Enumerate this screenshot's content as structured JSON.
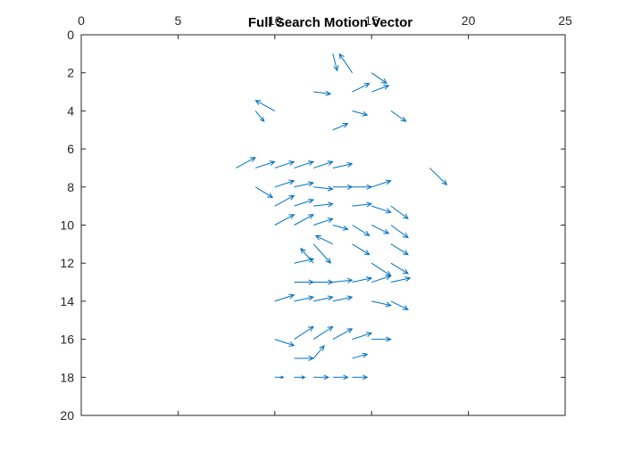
{
  "chart_data": {
    "type": "quiver",
    "title": "Full Search Motion Vector",
    "xlabel": "",
    "ylabel": "",
    "xlim": [
      0,
      25
    ],
    "ylim": [
      0,
      20
    ],
    "y_reversed": true,
    "x_axis_location": "top",
    "grid": false,
    "box": true,
    "x_ticks": [
      0,
      5,
      10,
      15,
      20,
      25
    ],
    "y_ticks": [
      0,
      2,
      4,
      6,
      8,
      10,
      12,
      14,
      16,
      18,
      20
    ],
    "color": "#0072BD",
    "vectors": [
      {
        "x": 13,
        "y": 1,
        "u": 0.2,
        "v": 0.8
      },
      {
        "x": 14,
        "y": 2,
        "u": -0.6,
        "v": -0.9
      },
      {
        "x": 15,
        "y": 2,
        "u": 0.7,
        "v": 0.5
      },
      {
        "x": 12,
        "y": 3,
        "u": 0.8,
        "v": 0.1
      },
      {
        "x": 14,
        "y": 3,
        "u": 0.8,
        "v": -0.4
      },
      {
        "x": 15,
        "y": 3,
        "u": 0.8,
        "v": -0.3
      },
      {
        "x": 10,
        "y": 4,
        "u": -0.9,
        "v": -0.5
      },
      {
        "x": 9,
        "y": 4,
        "u": 0.4,
        "v": 0.5
      },
      {
        "x": 14,
        "y": 4,
        "u": 0.7,
        "v": 0.2
      },
      {
        "x": 16,
        "y": 4,
        "u": 0.7,
        "v": 0.5
      },
      {
        "x": 13,
        "y": 5,
        "u": 0.7,
        "v": -0.3
      },
      {
        "x": 8,
        "y": 7,
        "u": 0.9,
        "v": -0.5
      },
      {
        "x": 9,
        "y": 7,
        "u": 0.9,
        "v": -0.3
      },
      {
        "x": 10,
        "y": 7,
        "u": 0.9,
        "v": -0.3
      },
      {
        "x": 11,
        "y": 7,
        "u": 0.9,
        "v": -0.3
      },
      {
        "x": 12,
        "y": 7,
        "u": 0.9,
        "v": -0.3
      },
      {
        "x": 13,
        "y": 7,
        "u": 0.9,
        "v": -0.2
      },
      {
        "x": 18,
        "y": 7,
        "u": 0.8,
        "v": 0.8
      },
      {
        "x": 9,
        "y": 8,
        "u": 0.8,
        "v": 0.5
      },
      {
        "x": 10,
        "y": 8,
        "u": 0.9,
        "v": -0.3
      },
      {
        "x": 11,
        "y": 8,
        "u": 0.9,
        "v": -0.2
      },
      {
        "x": 12,
        "y": 8,
        "u": 0.9,
        "v": 0.1
      },
      {
        "x": 13,
        "y": 8,
        "u": 0.9,
        "v": 0.0
      },
      {
        "x": 14,
        "y": 8,
        "u": 0.9,
        "v": 0.0
      },
      {
        "x": 15,
        "y": 8,
        "u": 0.9,
        "v": -0.3
      },
      {
        "x": 10,
        "y": 9,
        "u": 0.9,
        "v": -0.5
      },
      {
        "x": 11,
        "y": 9,
        "u": 0.9,
        "v": -0.3
      },
      {
        "x": 12,
        "y": 9,
        "u": 0.9,
        "v": -0.1
      },
      {
        "x": 14,
        "y": 9,
        "u": 0.9,
        "v": -0.1
      },
      {
        "x": 15,
        "y": 9,
        "u": 0.9,
        "v": 0.3
      },
      {
        "x": 16,
        "y": 9,
        "u": 0.8,
        "v": 0.6
      },
      {
        "x": 10,
        "y": 10,
        "u": 0.9,
        "v": -0.5
      },
      {
        "x": 11,
        "y": 10,
        "u": 0.9,
        "v": -0.5
      },
      {
        "x": 12,
        "y": 10,
        "u": 0.9,
        "v": -0.3
      },
      {
        "x": 13,
        "y": 10,
        "u": 0.7,
        "v": 0.2
      },
      {
        "x": 14,
        "y": 10,
        "u": 0.8,
        "v": 0.5
      },
      {
        "x": 15,
        "y": 10,
        "u": 0.8,
        "v": 0.4
      },
      {
        "x": 16,
        "y": 10,
        "u": 0.8,
        "v": 0.6
      },
      {
        "x": 12,
        "y": 11,
        "u": 0.8,
        "v": 0.9
      },
      {
        "x": 13,
        "y": 11,
        "u": -0.8,
        "v": -0.4
      },
      {
        "x": 14,
        "y": 11,
        "u": 0.8,
        "v": 0.5
      },
      {
        "x": 16,
        "y": 11,
        "u": 0.8,
        "v": 0.5
      },
      {
        "x": 11,
        "y": 12,
        "u": 0.9,
        "v": -0.2
      },
      {
        "x": 12,
        "y": 12,
        "u": -0.6,
        "v": -0.7
      },
      {
        "x": 15,
        "y": 12,
        "u": 0.9,
        "v": 0.6
      },
      {
        "x": 16,
        "y": 12,
        "u": 0.8,
        "v": 0.5
      },
      {
        "x": 11,
        "y": 13,
        "u": 0.9,
        "v": 0.0
      },
      {
        "x": 12,
        "y": 13,
        "u": 0.9,
        "v": 0.0
      },
      {
        "x": 13,
        "y": 13,
        "u": 0.9,
        "v": -0.1
      },
      {
        "x": 14,
        "y": 13,
        "u": 0.9,
        "v": -0.2
      },
      {
        "x": 15,
        "y": 13,
        "u": 0.9,
        "v": -0.3
      },
      {
        "x": 16,
        "y": 13,
        "u": 0.9,
        "v": -0.2
      },
      {
        "x": 10,
        "y": 14,
        "u": 0.9,
        "v": -0.3
      },
      {
        "x": 11,
        "y": 14,
        "u": 0.9,
        "v": -0.2
      },
      {
        "x": 12,
        "y": 14,
        "u": 0.9,
        "v": -0.2
      },
      {
        "x": 13,
        "y": 14,
        "u": 0.9,
        "v": -0.2
      },
      {
        "x": 15,
        "y": 14,
        "u": 0.9,
        "v": 0.2
      },
      {
        "x": 16,
        "y": 14,
        "u": 0.8,
        "v": 0.4
      },
      {
        "x": 11,
        "y": 16,
        "u": 0.9,
        "v": -0.6
      },
      {
        "x": 12,
        "y": 16,
        "u": 0.9,
        "v": -0.6
      },
      {
        "x": 13,
        "y": 16,
        "u": 0.9,
        "v": -0.5
      },
      {
        "x": 14,
        "y": 16,
        "u": 0.9,
        "v": -0.3
      },
      {
        "x": 15,
        "y": 16,
        "u": 0.9,
        "v": 0.0
      },
      {
        "x": 10,
        "y": 16,
        "u": 0.9,
        "v": 0.3
      },
      {
        "x": 11,
        "y": 17,
        "u": 0.9,
        "v": 0.0
      },
      {
        "x": 12,
        "y": 17,
        "u": 0.5,
        "v": -0.6
      },
      {
        "x": 14,
        "y": 17,
        "u": 0.7,
        "v": -0.2
      },
      {
        "x": 10,
        "y": 18,
        "u": 0.4,
        "v": 0.0
      },
      {
        "x": 11,
        "y": 18,
        "u": 0.5,
        "v": 0.0
      },
      {
        "x": 12,
        "y": 18,
        "u": 0.7,
        "v": 0.0
      },
      {
        "x": 13,
        "y": 18,
        "u": 0.7,
        "v": 0.0
      },
      {
        "x": 14,
        "y": 18,
        "u": 0.7,
        "v": 0.0
      }
    ]
  }
}
